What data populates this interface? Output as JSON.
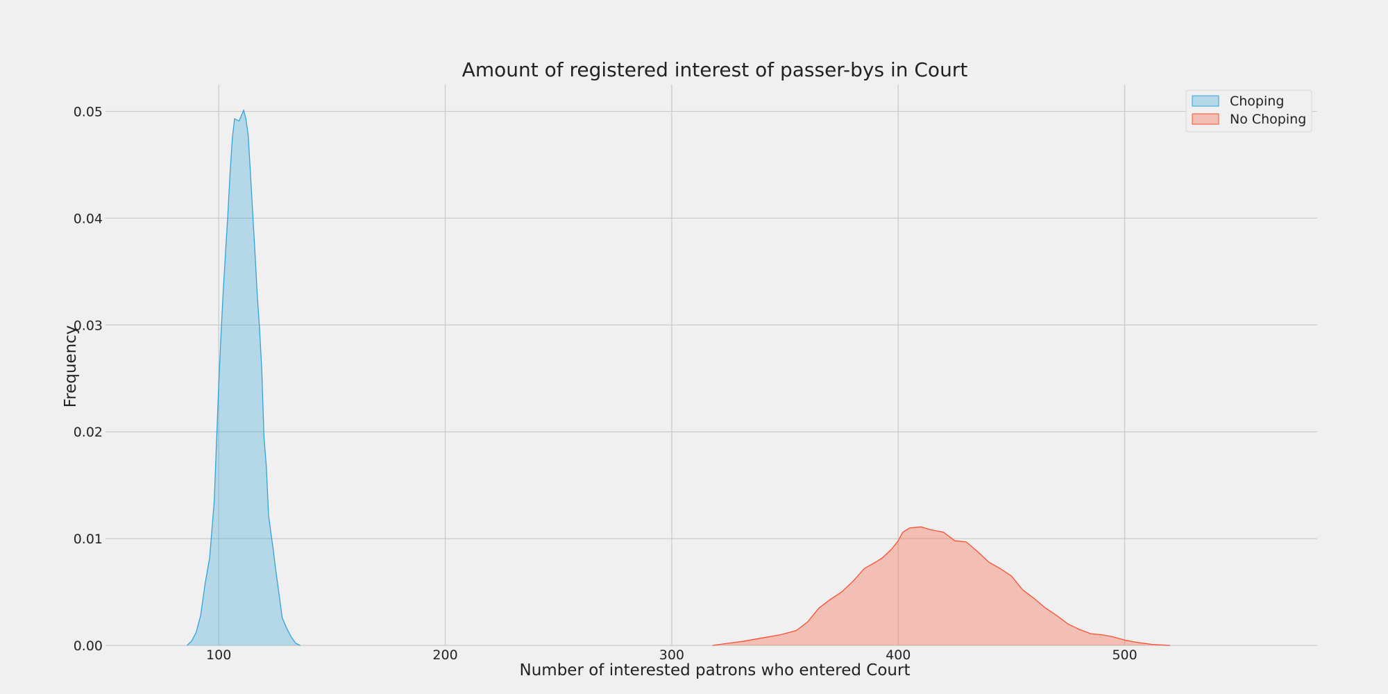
{
  "chart_data": {
    "type": "area",
    "title": "Amount of registered interest of passer-bys in Court",
    "xlabel": "Number of interested patrons who entered Court",
    "ylabel": "Frequency",
    "xlim": [
      50,
      585
    ],
    "ylim": [
      0,
      0.0525
    ],
    "x_ticks": [
      100,
      200,
      300,
      400,
      500
    ],
    "x_tick_labels": [
      "100",
      "200",
      "300",
      "400",
      "500"
    ],
    "y_ticks": [
      0,
      0.01,
      0.02,
      0.03,
      0.04,
      0.05
    ],
    "y_tick_labels": [
      "0.00",
      "0.01",
      "0.02",
      "0.03",
      "0.04",
      "0.05"
    ],
    "grid": true,
    "legend": "top-right",
    "series": [
      {
        "name": "Choping",
        "color": "#30a2da",
        "points": [
          [
            86,
            0.0
          ],
          [
            88,
            0.0004
          ],
          [
            90,
            0.0012
          ],
          [
            92,
            0.0028
          ],
          [
            94,
            0.0058
          ],
          [
            96,
            0.0082
          ],
          [
            98,
            0.0135
          ],
          [
            100,
            0.0245
          ],
          [
            101,
            0.029
          ],
          [
            102,
            0.0332
          ],
          [
            103,
            0.0368
          ],
          [
            104,
            0.0402
          ],
          [
            105,
            0.0442
          ],
          [
            106,
            0.0475
          ],
          [
            107,
            0.0493
          ],
          [
            108,
            0.0492
          ],
          [
            109,
            0.0491
          ],
          [
            110,
            0.0496
          ],
          [
            111,
            0.0501
          ],
          [
            112,
            0.0493
          ],
          [
            113,
            0.0478
          ],
          [
            114,
            0.0442
          ],
          [
            115,
            0.0405
          ],
          [
            116,
            0.0368
          ],
          [
            117,
            0.0328
          ],
          [
            118,
            0.0298
          ],
          [
            119,
            0.0258
          ],
          [
            120,
            0.0195
          ],
          [
            121,
            0.0168
          ],
          [
            122,
            0.0122
          ],
          [
            123,
            0.0106
          ],
          [
            124,
            0.0091
          ],
          [
            125,
            0.0073
          ],
          [
            126,
            0.0058
          ],
          [
            127,
            0.0042
          ],
          [
            128,
            0.0026
          ],
          [
            130,
            0.0016
          ],
          [
            132,
            0.0008
          ],
          [
            134,
            0.0002
          ],
          [
            136,
            0.0
          ]
        ]
      },
      {
        "name": "No Choping",
        "color": "#fc4f30",
        "points": [
          [
            318,
            0.0
          ],
          [
            325,
            0.0002
          ],
          [
            332,
            0.0004
          ],
          [
            340,
            0.0007
          ],
          [
            348,
            0.001
          ],
          [
            355,
            0.0014
          ],
          [
            360,
            0.0022
          ],
          [
            365,
            0.0035
          ],
          [
            370,
            0.0043
          ],
          [
            375,
            0.005
          ],
          [
            380,
            0.006
          ],
          [
            385,
            0.0072
          ],
          [
            390,
            0.0078
          ],
          [
            393,
            0.0082
          ],
          [
            397,
            0.009
          ],
          [
            400,
            0.0098
          ],
          [
            402,
            0.0106
          ],
          [
            405,
            0.011
          ],
          [
            410,
            0.0111
          ],
          [
            415,
            0.0108
          ],
          [
            420,
            0.0106
          ],
          [
            425,
            0.0098
          ],
          [
            430,
            0.0097
          ],
          [
            435,
            0.0088
          ],
          [
            440,
            0.0078
          ],
          [
            445,
            0.0072
          ],
          [
            450,
            0.0065
          ],
          [
            455,
            0.0052
          ],
          [
            460,
            0.0044
          ],
          [
            465,
            0.0035
          ],
          [
            470,
            0.0028
          ],
          [
            475,
            0.002
          ],
          [
            480,
            0.0015
          ],
          [
            485,
            0.0011
          ],
          [
            490,
            0.001
          ],
          [
            495,
            0.0008
          ],
          [
            500,
            0.0005
          ],
          [
            505,
            0.0003
          ],
          [
            512,
            0.0001
          ],
          [
            520,
            0.0
          ]
        ]
      }
    ]
  }
}
